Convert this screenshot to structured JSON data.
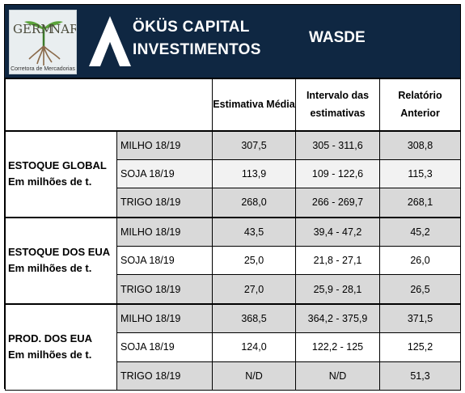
{
  "logo": {
    "left_text": "GERM",
    "right_text": "NAR",
    "subtitle": "Corretora de Mercadorias"
  },
  "brand": {
    "line1": "ÖKÜS CAPITAL",
    "line2": "INVESTIMENTOS"
  },
  "report_title": "WASDE",
  "table": {
    "headers": [
      "",
      "Estimativa Média",
      "Intervalo das estimativas",
      "Relatório Anterior"
    ],
    "groups": [
      {
        "title": "ESTOQUE GLOBAL",
        "subtitle": "Em milhões de t.",
        "rows": [
          {
            "crop": "MILHO 18/19",
            "media": "307,5",
            "intervalo": "305 - 311,6",
            "anterior": "308,8"
          },
          {
            "crop": "SOJA 18/19",
            "media": "113,9",
            "intervalo": "109 - 122,6",
            "anterior": "115,3"
          },
          {
            "crop": "TRIGO 18/19",
            "media": "268,0",
            "intervalo": "266 - 269,7",
            "anterior": "268,1"
          }
        ]
      },
      {
        "title": "ESTOQUE DOS EUA",
        "subtitle": "Em milhões de t.",
        "rows": [
          {
            "crop": "MILHO 18/19",
            "media": "43,5",
            "intervalo": "39,4 - 47,2",
            "anterior": "45,2"
          },
          {
            "crop": "SOJA 18/19",
            "media": "25,0",
            "intervalo": "21,8 - 27,1",
            "anterior": "26,0"
          },
          {
            "crop": "TRIGO 18/19",
            "media": "27,0",
            "intervalo": "25,9 - 28,1",
            "anterior": "26,5"
          }
        ]
      },
      {
        "title": "PROD. DOS EUA",
        "subtitle": "Em milhões de t.",
        "rows": [
          {
            "crop": "MILHO 18/19",
            "media": "368,5",
            "intervalo": "364,2 - 375,9",
            "anterior": "371,5"
          },
          {
            "crop": "SOJA 18/19",
            "media": "124,0",
            "intervalo": "122,2 - 125",
            "anterior": "125,2"
          },
          {
            "crop": "TRIGO 18/19",
            "media": "N/D",
            "intervalo": "N/D",
            "anterior": "51,3"
          }
        ]
      }
    ]
  },
  "colors": {
    "banner": "#0f2742",
    "shade": "#d9d9d9",
    "light": "#f2f2f2"
  }
}
